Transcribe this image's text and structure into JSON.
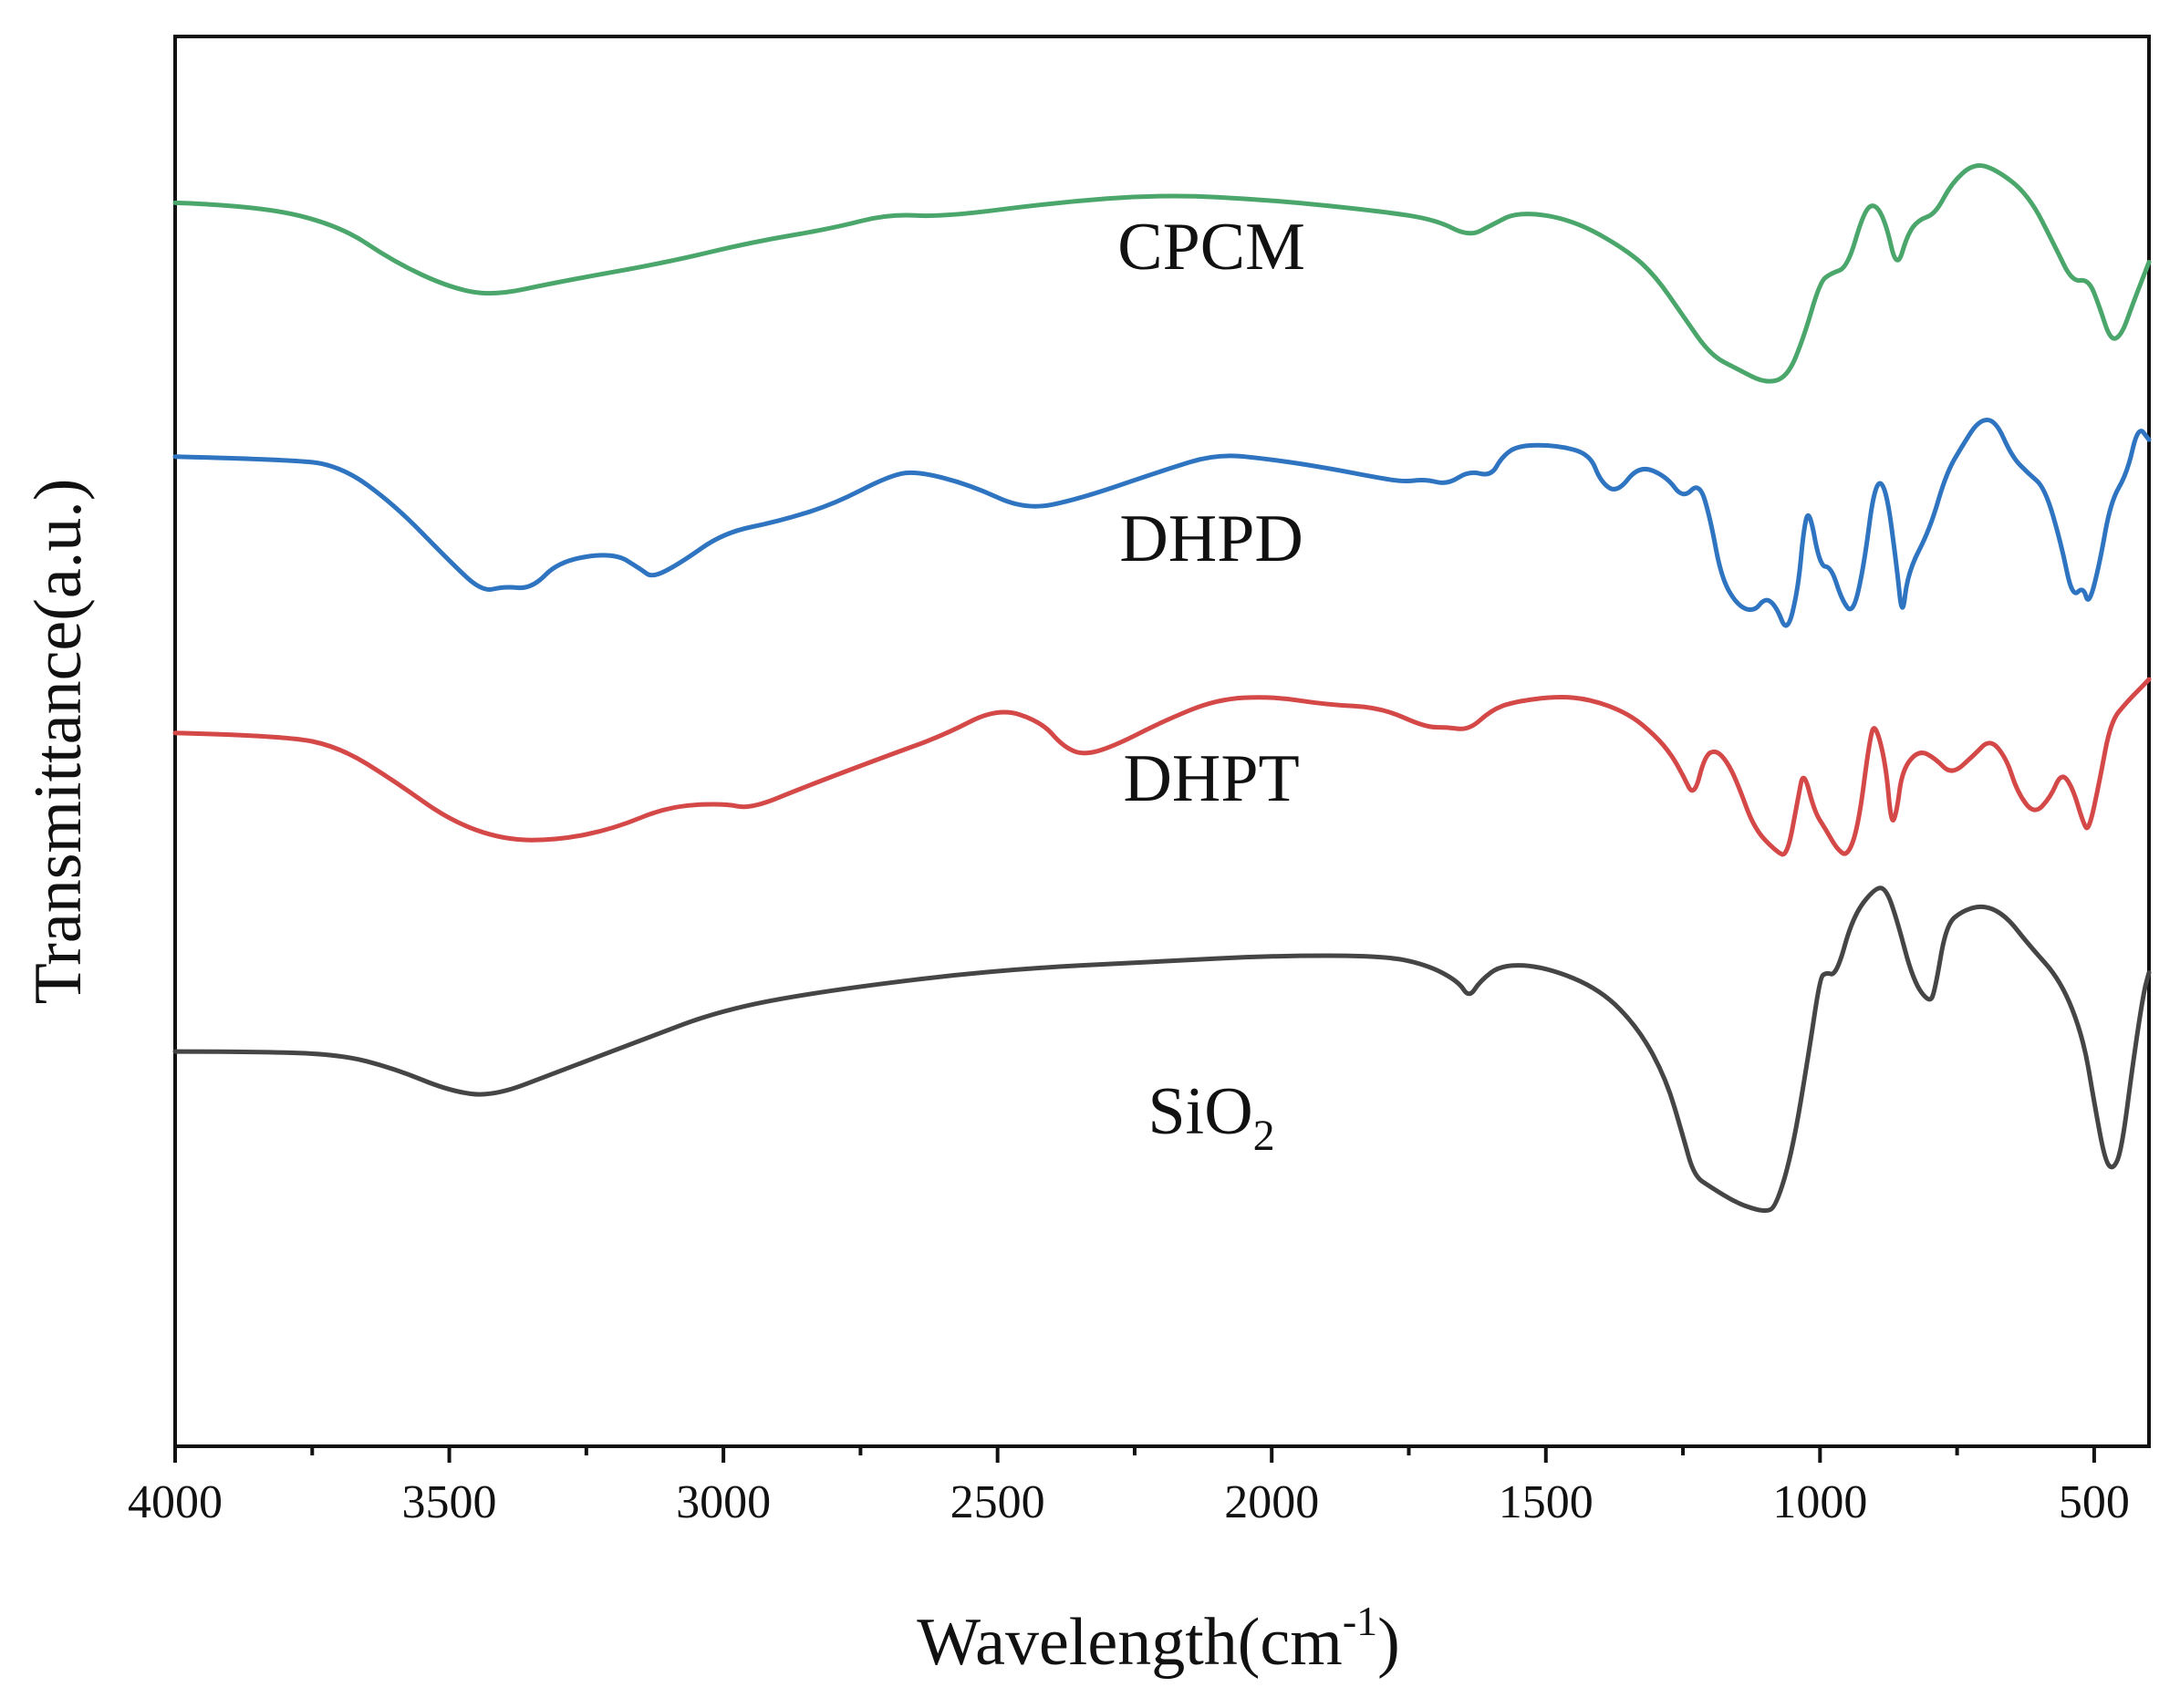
{
  "chart_data": {
    "type": "line",
    "title": "",
    "xlabel": "Wavelength(cm",
    "xlabel_sup": "-1",
    "xlabel_close": ")",
    "ylabel": "Transmittance(a.u.)",
    "xlim": [
      4000,
      400
    ],
    "ylim": [
      0,
      100
    ],
    "x_ticks": [
      4000,
      3500,
      3000,
      2500,
      2000,
      1500,
      1000,
      500
    ],
    "x_tick_labels": [
      "4000",
      "3500",
      "3000",
      "2500",
      "2000",
      "1500",
      "1000",
      "500"
    ],
    "y_ticks_shown": false,
    "series": [
      {
        "name": "CPCM",
        "label_main": "CPCM",
        "label_sub": "",
        "label_x": 2110,
        "label_y": 83.5,
        "color": "#4aa66b",
        "points": [
          [
            4000,
            88.2
          ],
          [
            3850,
            88.0
          ],
          [
            3700,
            86.6
          ],
          [
            3600,
            84.0
          ],
          [
            3500,
            82.2
          ],
          [
            3420,
            81.6
          ],
          [
            3300,
            82.6
          ],
          [
            3100,
            84.0
          ],
          [
            2950,
            85.4
          ],
          [
            2800,
            86.4
          ],
          [
            2700,
            87.4
          ],
          [
            2600,
            87.2
          ],
          [
            2400,
            88.2
          ],
          [
            2200,
            88.8
          ],
          [
            2000,
            88.4
          ],
          [
            1800,
            87.6
          ],
          [
            1700,
            87.0
          ],
          [
            1640,
            85.8
          ],
          [
            1600,
            86.6
          ],
          [
            1550,
            87.6
          ],
          [
            1450,
            87.0
          ],
          [
            1350,
            84.8
          ],
          [
            1300,
            83.0
          ],
          [
            1250,
            80.2
          ],
          [
            1200,
            77.4
          ],
          [
            1150,
            76.4
          ],
          [
            1100,
            75.4
          ],
          [
            1060,
            75.8
          ],
          [
            1030,
            78.6
          ],
          [
            1000,
            82.6
          ],
          [
            980,
            83.2
          ],
          [
            950,
            83.6
          ],
          [
            920,
            87.6
          ],
          [
            900,
            88.2
          ],
          [
            880,
            86.8
          ],
          [
            860,
            83.4
          ],
          [
            840,
            86.0
          ],
          [
            820,
            87.0
          ],
          [
            790,
            87.4
          ],
          [
            760,
            89.6
          ],
          [
            720,
            91.0
          ],
          [
            680,
            90.6
          ],
          [
            620,
            88.8
          ],
          [
            570,
            85.0
          ],
          [
            540,
            82.6
          ],
          [
            510,
            82.8
          ],
          [
            490,
            80.8
          ],
          [
            470,
            78.4
          ],
          [
            450,
            78.8
          ],
          [
            430,
            81.0
          ],
          [
            400,
            84.0
          ]
        ]
      },
      {
        "name": "DHPD",
        "label_main": "DHPD",
        "label_sub": "",
        "label_x": 2110,
        "label_y": 62.8,
        "color": "#2e74c0",
        "points": [
          [
            4000,
            70.2
          ],
          [
            3800,
            70.0
          ],
          [
            3700,
            69.6
          ],
          [
            3600,
            66.8
          ],
          [
            3500,
            62.8
          ],
          [
            3440,
            60.6
          ],
          [
            3400,
            61.0
          ],
          [
            3350,
            60.8
          ],
          [
            3300,
            62.8
          ],
          [
            3200,
            63.4
          ],
          [
            3150,
            62.2
          ],
          [
            3130,
            61.6
          ],
          [
            3080,
            62.6
          ],
          [
            3000,
            64.8
          ],
          [
            2900,
            65.6
          ],
          [
            2800,
            66.8
          ],
          [
            2700,
            68.8
          ],
          [
            2650,
            69.2
          ],
          [
            2550,
            68.2
          ],
          [
            2450,
            66.4
          ],
          [
            2350,
            67.2
          ],
          [
            2200,
            69.2
          ],
          [
            2100,
            70.4
          ],
          [
            2000,
            70.0
          ],
          [
            1900,
            69.4
          ],
          [
            1820,
            68.8
          ],
          [
            1760,
            68.4
          ],
          [
            1720,
            68.6
          ],
          [
            1680,
            68.2
          ],
          [
            1640,
            69.2
          ],
          [
            1600,
            68.8
          ],
          [
            1580,
            70.2
          ],
          [
            1550,
            71.0
          ],
          [
            1480,
            71.0
          ],
          [
            1420,
            70.4
          ],
          [
            1400,
            68.4
          ],
          [
            1370,
            67.6
          ],
          [
            1330,
            69.6
          ],
          [
            1280,
            68.8
          ],
          [
            1250,
            67.2
          ],
          [
            1220,
            68.4
          ],
          [
            1200,
            65.8
          ],
          [
            1180,
            61.6
          ],
          [
            1150,
            59.6
          ],
          [
            1120,
            59.2
          ],
          [
            1100,
            60.2
          ],
          [
            1080,
            59.6
          ],
          [
            1060,
            57.6
          ],
          [
            1040,
            60.8
          ],
          [
            1030,
            65.0
          ],
          [
            1020,
            66.6
          ],
          [
            1000,
            62.4
          ],
          [
            980,
            62.4
          ],
          [
            960,
            60.0
          ],
          [
            940,
            59.0
          ],
          [
            920,
            62.4
          ],
          [
            900,
            68.4
          ],
          [
            880,
            68.2
          ],
          [
            860,
            62.4
          ],
          [
            850,
            58.6
          ],
          [
            840,
            62.0
          ],
          [
            800,
            65.0
          ],
          [
            770,
            69.0
          ],
          [
            740,
            71.0
          ],
          [
            710,
            72.8
          ],
          [
            680,
            72.8
          ],
          [
            650,
            70.2
          ],
          [
            620,
            69.0
          ],
          [
            590,
            68.0
          ],
          [
            560,
            64.0
          ],
          [
            540,
            60.2
          ],
          [
            520,
            61.0
          ],
          [
            510,
            59.6
          ],
          [
            490,
            62.6
          ],
          [
            470,
            67.0
          ],
          [
            440,
            69.0
          ],
          [
            420,
            72.4
          ],
          [
            400,
            71.4
          ]
        ]
      },
      {
        "name": "DHPT",
        "label_main": "DHPT",
        "label_sub": "",
        "label_x": 2110,
        "label_y": 45.8,
        "color": "#d44848",
        "points": [
          [
            4000,
            50.6
          ],
          [
            3800,
            50.4
          ],
          [
            3700,
            49.6
          ],
          [
            3600,
            47.2
          ],
          [
            3500,
            44.4
          ],
          [
            3400,
            43.0
          ],
          [
            3300,
            43.0
          ],
          [
            3200,
            43.8
          ],
          [
            3100,
            45.4
          ],
          [
            3000,
            45.6
          ],
          [
            2950,
            45.2
          ],
          [
            2850,
            46.8
          ],
          [
            2700,
            49.0
          ],
          [
            2600,
            50.4
          ],
          [
            2500,
            52.4
          ],
          [
            2420,
            51.4
          ],
          [
            2380,
            49.6
          ],
          [
            2340,
            49.0
          ],
          [
            2280,
            49.8
          ],
          [
            2200,
            51.4
          ],
          [
            2100,
            53.0
          ],
          [
            2000,
            53.2
          ],
          [
            1900,
            52.6
          ],
          [
            1800,
            52.4
          ],
          [
            1720,
            51.0
          ],
          [
            1680,
            51.0
          ],
          [
            1640,
            50.8
          ],
          [
            1600,
            52.2
          ],
          [
            1560,
            52.8
          ],
          [
            1480,
            53.2
          ],
          [
            1420,
            53.0
          ],
          [
            1350,
            52.0
          ],
          [
            1300,
            50.4
          ],
          [
            1270,
            49.0
          ],
          [
            1250,
            47.6
          ],
          [
            1230,
            46.0
          ],
          [
            1210,
            49.0
          ],
          [
            1190,
            49.4
          ],
          [
            1170,
            48.6
          ],
          [
            1150,
            47.0
          ],
          [
            1120,
            43.8
          ],
          [
            1080,
            42.2
          ],
          [
            1060,
            41.8
          ],
          [
            1040,
            46.0
          ],
          [
            1030,
            48.0
          ],
          [
            1010,
            45.0
          ],
          [
            990,
            43.8
          ],
          [
            970,
            42.4
          ],
          [
            950,
            41.8
          ],
          [
            930,
            44.0
          ],
          [
            910,
            50.0
          ],
          [
            900,
            51.4
          ],
          [
            880,
            48.4
          ],
          [
            870,
            44.0
          ],
          [
            860,
            45.0
          ],
          [
            850,
            48.0
          ],
          [
            820,
            49.4
          ],
          [
            790,
            48.8
          ],
          [
            760,
            47.6
          ],
          [
            720,
            49.0
          ],
          [
            690,
            50.2
          ],
          [
            660,
            48.8
          ],
          [
            640,
            46.4
          ],
          [
            610,
            44.8
          ],
          [
            580,
            46.0
          ],
          [
            560,
            47.8
          ],
          [
            540,
            46.8
          ],
          [
            520,
            44.2
          ],
          [
            510,
            43.6
          ],
          [
            490,
            47.2
          ],
          [
            470,
            51.4
          ],
          [
            440,
            52.8
          ],
          [
            420,
            53.6
          ],
          [
            400,
            54.4
          ]
        ]
      },
      {
        "name": "SiO2",
        "label_main": "SiO",
        "label_sub": "2",
        "label_x": 2110,
        "label_y": 22.2,
        "color": "#454545",
        "points": [
          [
            4000,
            28.0
          ],
          [
            3850,
            28.0
          ],
          [
            3700,
            27.8
          ],
          [
            3600,
            26.8
          ],
          [
            3500,
            25.2
          ],
          [
            3420,
            24.8
          ],
          [
            3300,
            26.6
          ],
          [
            3150,
            28.8
          ],
          [
            3000,
            31.0
          ],
          [
            2800,
            32.4
          ],
          [
            2500,
            33.8
          ],
          [
            2200,
            34.4
          ],
          [
            2000,
            34.8
          ],
          [
            1800,
            34.8
          ],
          [
            1720,
            34.2
          ],
          [
            1660,
            33.0
          ],
          [
            1640,
            31.8
          ],
          [
            1620,
            33.0
          ],
          [
            1580,
            34.2
          ],
          [
            1500,
            34.0
          ],
          [
            1400,
            32.4
          ],
          [
            1330,
            29.6
          ],
          [
            1280,
            26.0
          ],
          [
            1250,
            22.0
          ],
          [
            1230,
            19.2
          ],
          [
            1200,
            18.4
          ],
          [
            1150,
            17.2
          ],
          [
            1100,
            16.6
          ],
          [
            1080,
            17.0
          ],
          [
            1050,
            21.0
          ],
          [
            1020,
            28.0
          ],
          [
            1000,
            33.2
          ],
          [
            990,
            33.6
          ],
          [
            970,
            33.4
          ],
          [
            940,
            37.6
          ],
          [
            900,
            39.6
          ],
          [
            880,
            39.6
          ],
          [
            860,
            37.4
          ],
          [
            830,
            33.0
          ],
          [
            800,
            31.4
          ],
          [
            790,
            32.4
          ],
          [
            770,
            37.0
          ],
          [
            740,
            38.0
          ],
          [
            700,
            38.4
          ],
          [
            660,
            37.6
          ],
          [
            620,
            35.6
          ],
          [
            560,
            33.0
          ],
          [
            520,
            29.0
          ],
          [
            500,
            24.4
          ],
          [
            480,
            20.2
          ],
          [
            465,
            19.6
          ],
          [
            450,
            21.0
          ],
          [
            430,
            27.0
          ],
          [
            410,
            32.2
          ],
          [
            400,
            33.6
          ]
        ]
      }
    ]
  }
}
